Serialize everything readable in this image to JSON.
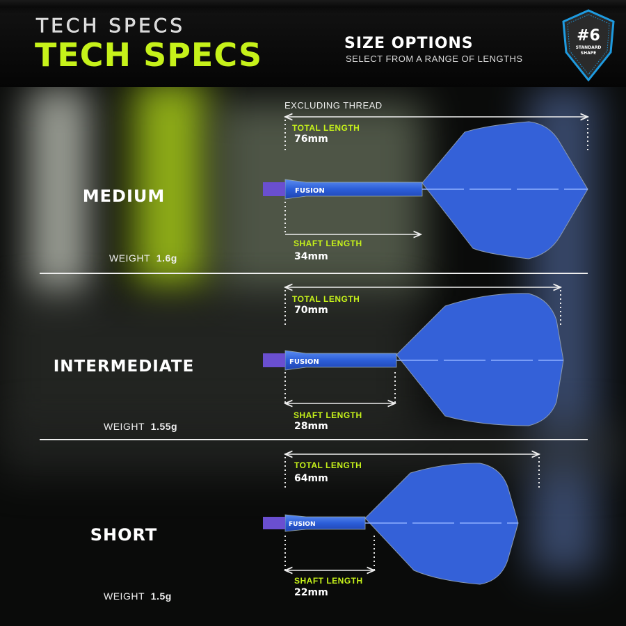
{
  "header": {
    "title": "TECH SPECS",
    "title_ghost": "TECH SPECS",
    "subtitle": "SIZE OPTIONS",
    "subtitle_caption": "SELECT FROM A RANGE OF LENGTHS"
  },
  "badge": {
    "number": "#6",
    "line1": "STANDARD",
    "line2": "SHAPE",
    "color": "#1e9be0"
  },
  "note": "EXCLUDING THREAD",
  "accent": "#c6f21a",
  "flight_color": "#3461d8",
  "sizes": [
    {
      "name": "MEDIUM",
      "weight_label": "WEIGHT",
      "weight": "1.6g",
      "total_label": "TOTAL LENGTH",
      "total": "76mm",
      "shaft_label": "SHAFT LENGTH",
      "shaft": "34mm",
      "brand": "FUSION"
    },
    {
      "name": "INTERMEDIATE",
      "weight_label": "WEIGHT",
      "weight": "1.55g",
      "total_label": "TOTAL LENGTH",
      "total": "70mm",
      "shaft_label": "SHAFT LENGTH",
      "shaft": "28mm",
      "brand": "FUSION"
    },
    {
      "name": "SHORT",
      "weight_label": "WEIGHT",
      "weight": "1.5g",
      "total_label": "TOTAL LENGTH",
      "total": "64mm",
      "shaft_label": "SHAFT LENGTH",
      "shaft": "22mm",
      "brand": "FUSION"
    }
  ]
}
